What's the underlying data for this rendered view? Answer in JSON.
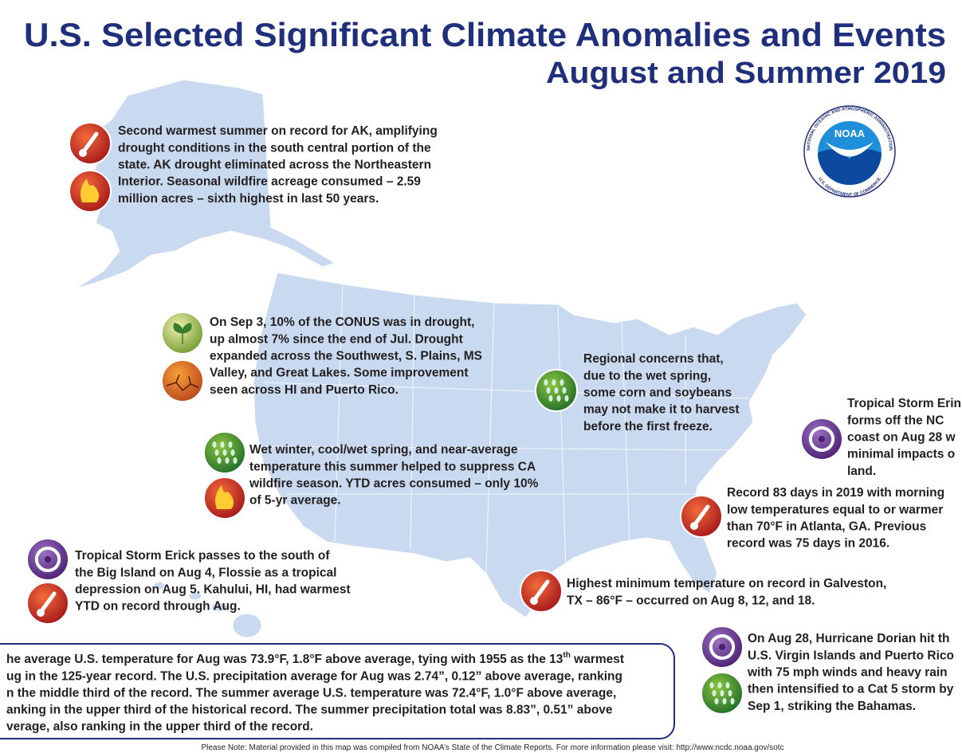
{
  "header": {
    "title": "U.S. Selected Significant Climate Anomalies and Events",
    "subtitle": "August and Summer 2019"
  },
  "logo": {
    "name": "NOAA",
    "ring_top": "NATIONAL OCEANIC AND ATMOSPHERIC ADMINISTRATION",
    "ring_bottom": "U.S. DEPARTMENT OF COMMERCE"
  },
  "callouts": [
    {
      "lines": [
        "Second warmest summer on record for AK, amplifying",
        "drought conditions in the south central portion of the",
        "state. AK drought eliminated across the Northeastern",
        "Interior. Seasonal wildfire acreage consumed – 2.59",
        "million acres – sixth highest in last 50 years."
      ]
    },
    {
      "lines": [
        "On Sep 3, 10% of the CONUS was in drought,",
        "up almost 7% since the end of Jul. Drought",
        "expanded across the Southwest, S. Plains, MS",
        "Valley, and Great Lakes. Some improvement",
        "seen across HI and Puerto Rico."
      ]
    },
    {
      "lines": [
        "Wet winter, cool/wet spring, and near-average",
        "temperature this summer helped to suppress CA",
        "wildfire season. YTD acres consumed – only 10%",
        "of 5-yr average."
      ]
    },
    {
      "lines": [
        "Regional concerns that,",
        "due to the wet spring,",
        "some corn and soybeans",
        "may not make it to harvest",
        "before the first freeze."
      ]
    },
    {
      "lines": [
        "Tropical Storm Erin",
        "forms off the NC",
        "coast on Aug 28 w",
        "minimal impacts o",
        "land."
      ]
    },
    {
      "lines": [
        "Record 83 days in 2019 with morning",
        "low temperatures equal to or warmer",
        "than 70°F in Atlanta, GA. Previous",
        "record was 75 days in 2016."
      ]
    },
    {
      "lines": [
        "Tropical Storm Erick passes to the south of",
        "the Big Island on Aug 4, Flossie as a tropical",
        "depression on Aug 5. Kahului, HI, had warmest",
        "YTD on record through Aug."
      ]
    },
    {
      "lines": [
        "Highest minimum temperature on record in Galveston,",
        "TX – 86°F – occurred on Aug 8, 12, and 18."
      ]
    },
    {
      "lines": [
        "On Aug 28, Hurricane Dorian hit th",
        "U.S. Virgin Islands and Puerto Rico",
        "with 75 mph winds and heavy rain",
        "then intensified to a Cat 5 storm by",
        "Sep 1, striking the Bahamas."
      ]
    }
  ],
  "summary": {
    "first_line": {
      "before": "he average U.S. temperature for Aug was 73.9°F, 1.8°F above average, tying with 1955 as the 13",
      "sup": "th",
      "after": " warmest"
    },
    "lines": [
      "ug in the 125-year record. The U.S. precipitation average for Aug was 2.74”, 0.12” above average, ranking",
      "n the middle third of the record. The summer average U.S. temperature was 72.4°F, 1.0°F above average,",
      "anking in the upper third of the historical record. The summer precipitation total was 8.83”, 0.51” above",
      "verage, also ranking in the upper third of the record."
    ]
  },
  "footnote": "Please Note: Material provided in this map was compiled from NOAA’s State of the Climate Reports. For more information please visit: http://www.ncdc.noaa.gov/sotc"
}
